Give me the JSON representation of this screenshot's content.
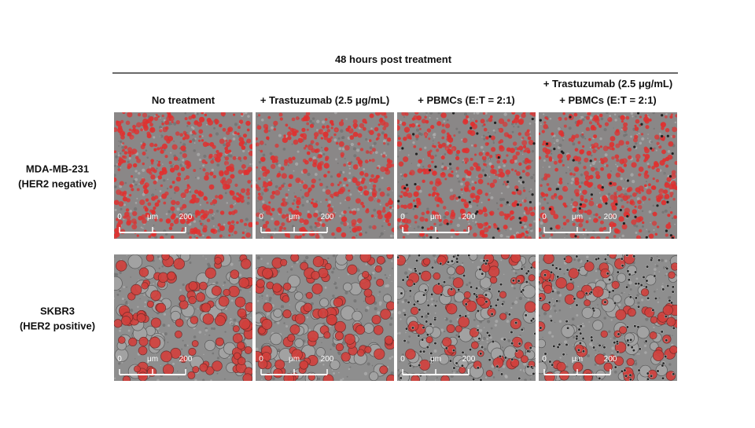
{
  "header": {
    "title": "48 hours post treatment"
  },
  "columns": [
    {
      "lines": [
        "No treatment"
      ]
    },
    {
      "lines": [
        "+ Trastuzumab (2.5 μg/mL)"
      ]
    },
    {
      "lines": [
        "+ PBMCs (E:T = 2:1)"
      ]
    },
    {
      "lines": [
        "+ Trastuzumab (2.5 μg/mL)",
        "+ PBMCs (E:T = 2:1)"
      ]
    }
  ],
  "rows": [
    {
      "lines": [
        "MDA-MB-231",
        "(HER2 negative)"
      ]
    },
    {
      "lines": [
        "SKBR3",
        "(HER2 positive)"
      ]
    }
  ],
  "scale_bar": {
    "start": "0",
    "unit": "μm",
    "end": "200"
  }
}
